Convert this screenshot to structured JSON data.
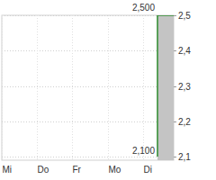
{
  "chart_data": {
    "type": "line",
    "x": [
      4.41,
      4.41,
      4.87
    ],
    "values": [
      2.1,
      2.5,
      2.5
    ],
    "color": "#2e8b2e",
    "xlim": [
      0,
      4.87
    ],
    "xticks": [
      {
        "value": 0,
        "label": "Mi"
      },
      {
        "value": 1,
        "label": "Do"
      },
      {
        "value": 2,
        "label": "Fr"
      },
      {
        "value": 3,
        "label": "Mo"
      },
      {
        "value": 4,
        "label": "Di"
      }
    ],
    "ylim": [
      2.09,
      2.5
    ],
    "yticks": [
      {
        "value": 2.1,
        "label": "2,1"
      },
      {
        "value": 2.2,
        "label": "2,2"
      },
      {
        "value": 2.3,
        "label": "2,3"
      },
      {
        "value": 2.4,
        "label": "2,4"
      },
      {
        "value": 2.5,
        "label": "2,5"
      }
    ],
    "grid": true,
    "annotations": [
      {
        "text": "2,500",
        "value": 2.5
      },
      {
        "text": "2,100",
        "value": 2.1
      }
    ]
  }
}
